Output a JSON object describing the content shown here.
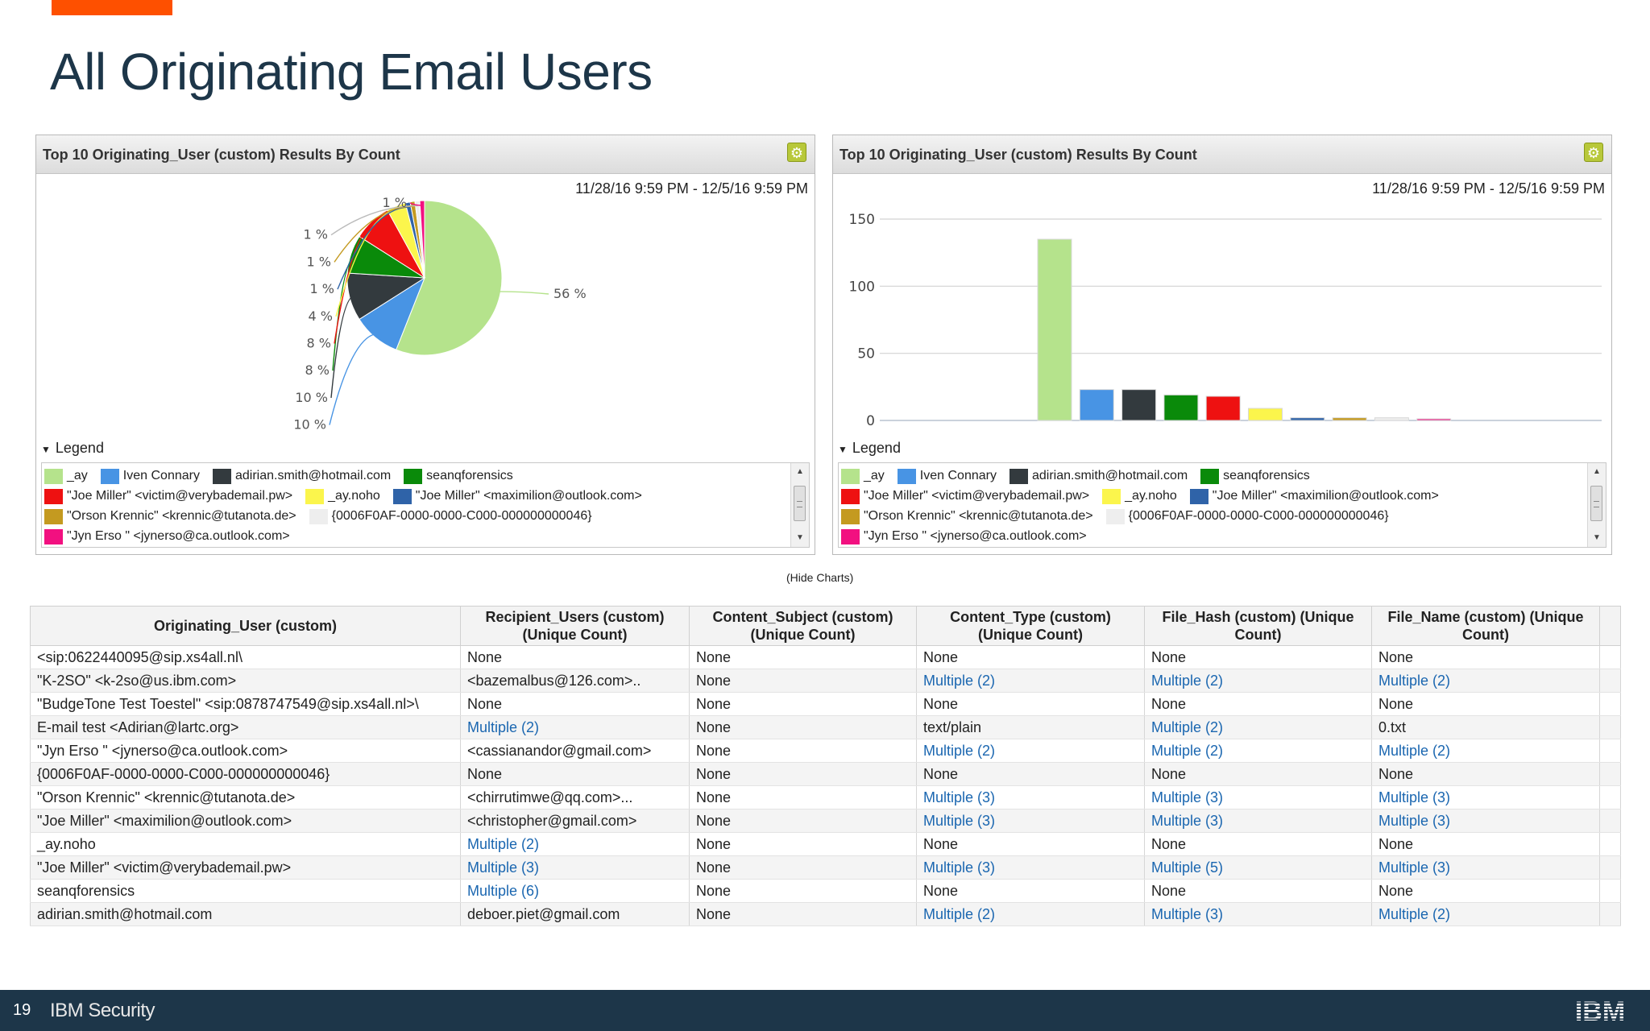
{
  "page": {
    "title": "All Originating Email Users"
  },
  "panels": [
    {
      "title": "Top 10 Originating_User (custom) Results By Count",
      "date_range": "11/28/16 9:59 PM - 12/5/16 9:59 PM",
      "legend_label": "Legend",
      "legend_rows": [
        [
          {
            "name": "_ay",
            "color": "#b5e38c"
          },
          {
            "name": "Iven Connary",
            "color": "#4894e4"
          },
          {
            "name": "adirian.smith@hotmail.com",
            "color": "#333a3e"
          },
          {
            "name": "seanqforensics",
            "color": "#0a8a0a"
          }
        ],
        [
          {
            "name": "\"Joe Miller\" <victim@verybademail.pw>",
            "color": "#ee1111"
          },
          {
            "name": "_ay.noho",
            "color": "#fbf54c"
          },
          {
            "name": "\"Joe Miller\" <maximilion@outlook.com>",
            "color": "#2f63a8"
          }
        ],
        [
          {
            "name": "\"Orson Krennic\" <krennic@tutanota.de>",
            "color": "#c49a20"
          },
          {
            "name": "{0006F0AF-0000-0000-C000-000000000046}",
            "color": "#eeeeee"
          }
        ],
        [
          {
            "name": "\"Jyn Erso  \" <jynerso@ca.outlook.com>",
            "color": "#f21080"
          }
        ]
      ]
    },
    {
      "title": "Top 10 Originating_User (custom) Results By Count",
      "date_range": "11/28/16 9:59 PM - 12/5/16 9:59 PM",
      "legend_label": "Legend",
      "legend_rows": [
        [
          {
            "name": "_ay",
            "color": "#b5e38c"
          },
          {
            "name": "Iven Connary",
            "color": "#4894e4"
          },
          {
            "name": "adirian.smith@hotmail.com",
            "color": "#333a3e"
          },
          {
            "name": "seanqforensics",
            "color": "#0a8a0a"
          }
        ],
        [
          {
            "name": "\"Joe Miller\" <victim@verybademail.pw>",
            "color": "#ee1111"
          },
          {
            "name": "_ay.noho",
            "color": "#fbf54c"
          },
          {
            "name": "\"Joe Miller\" <maximilion@outlook.com>",
            "color": "#2f63a8"
          }
        ],
        [
          {
            "name": "\"Orson Krennic\" <krennic@tutanota.de>",
            "color": "#c49a20"
          },
          {
            "name": "{0006F0AF-0000-0000-C000-000000000046}",
            "color": "#eeeeee"
          }
        ],
        [
          {
            "name": "\"Jyn Erso  \" <jynerso@ca.outlook.com>",
            "color": "#f21080"
          }
        ]
      ]
    }
  ],
  "chart_data": [
    {
      "type": "pie",
      "title": "Top 10 Originating_User (custom) Results By Count",
      "labels": [
        "_ay",
        "Iven Connary",
        "adirian.smith@hotmail.com",
        "seanqforensics",
        "\"Joe Miller\" <victim@verybademail.pw>",
        "_ay.noho",
        "\"Joe Miller\" <maximilion@outlook.com>",
        "\"Orson Krennic\" <krennic@tutanota.de>",
        "{0006F0AF-0000-0000-C000-000000000046}",
        "\"Jyn Erso  \" <jynerso@ca.outlook.com>"
      ],
      "values": [
        56,
        10,
        10,
        8,
        8,
        4,
        1,
        1,
        1,
        1
      ],
      "value_labels": [
        "56 %",
        "10 %",
        "10 %",
        "8 %",
        "8 %",
        "4 %",
        "1 %",
        "1 %",
        "1 %",
        "1 %"
      ],
      "colors": [
        "#b5e38c",
        "#4894e4",
        "#333a3e",
        "#0a8a0a",
        "#ee1111",
        "#fbf54c",
        "#2f63a8",
        "#c49a20",
        "#eeeeee",
        "#f21080"
      ]
    },
    {
      "type": "bar",
      "title": "Top 10 Originating_User (custom) Results By Count",
      "categories": [
        "_ay",
        "Iven Connary",
        "adirian.smith@hotmail.com",
        "seanqforensics",
        "\"Joe Miller\" <victim@verybademail.pw>",
        "_ay.noho",
        "\"Joe Miller\" <maximilion@outlook.com>",
        "\"Orson Krennic\" <krennic@tutanota.de>",
        "{0006F0AF-0000-0000-C000-000000000046}",
        "\"Jyn Erso  \" <jynerso@ca.outlook.com>"
      ],
      "values": [
        135,
        23,
        23,
        19,
        18,
        9,
        2,
        2,
        2,
        1
      ],
      "colors": [
        "#b5e38c",
        "#4894e4",
        "#333a3e",
        "#0a8a0a",
        "#ee1111",
        "#fbf54c",
        "#2f63a8",
        "#c49a20",
        "#eeeeee",
        "#f21080"
      ],
      "yticks": [
        0,
        50,
        100,
        150
      ],
      "ylim": [
        0,
        150
      ],
      "grid": true
    }
  ],
  "hide_charts_label": "(Hide Charts)",
  "table": {
    "headers": [
      "Originating_User (custom)",
      "Recipient_Users (custom) (Unique Count)",
      "Content_Subject (custom) (Unique Count)",
      "Content_Type (custom) (Unique Count)",
      "File_Hash (custom) (Unique Count)",
      "File_Name (custom) (Unique Count)"
    ],
    "rows": [
      [
        "<sip:0622440095@sip.xs4all.nl\\",
        "None",
        "None",
        "None",
        "None",
        "None"
      ],
      [
        "\"K-2SO\" <k-2so@us.ibm.com>",
        "<bazemalbus@126.com>..",
        "None",
        "Multiple (2)",
        "Multiple (2)",
        "Multiple (2)"
      ],
      [
        "\"BudgeTone Test Toestel\" <sip:0878747549@sip.xs4all.nl>\\",
        "None",
        "None",
        "None",
        "None",
        "None"
      ],
      [
        "E-mail test <Adirian@lartc.org>",
        "Multiple (2)",
        "None",
        "text/plain",
        "Multiple (2)",
        "0.txt"
      ],
      [
        "\"Jyn Erso  \" <jynerso@ca.outlook.com>",
        "<cassianandor@gmail.com>",
        "None",
        "Multiple (2)",
        "Multiple (2)",
        "Multiple (2)"
      ],
      [
        "{0006F0AF-0000-0000-C000-000000000046}",
        "None",
        "None",
        "None",
        "None",
        "None"
      ],
      [
        "\"Orson Krennic\" <krennic@tutanota.de>",
        "<chirrutimwe@qq.com>...",
        "None",
        "Multiple (3)",
        "Multiple (3)",
        "Multiple (3)"
      ],
      [
        "\"Joe Miller\" <maximilion@outlook.com>",
        "<christopher@gmail.com>",
        "None",
        "Multiple (3)",
        "Multiple (3)",
        "Multiple (3)"
      ],
      [
        "_ay.noho",
        "Multiple (2)",
        "None",
        "None",
        "None",
        "None"
      ],
      [
        "\"Joe Miller\" <victim@verybademail.pw>",
        "Multiple (3)",
        "None",
        "Multiple (3)",
        "Multiple (5)",
        "Multiple (3)"
      ],
      [
        "seanqforensics",
        "Multiple (6)",
        "None",
        "None",
        "None",
        "None"
      ],
      [
        "adirian.smith@hotmail.com",
        "deboer.piet@gmail.com",
        "None",
        "Multiple (2)",
        "Multiple (3)",
        "Multiple (2)"
      ]
    ]
  },
  "footer": {
    "page_number": "19",
    "brand": "IBM Security",
    "logo": "IBM"
  },
  "colors": {
    "accent": "#fe5000",
    "title": "#1d3649",
    "footer_bg": "#1d3649",
    "link": "#1a66b0"
  },
  "icons": {
    "panel_settings": "gear-icon",
    "legend_toggle": "triangle-down-icon"
  }
}
